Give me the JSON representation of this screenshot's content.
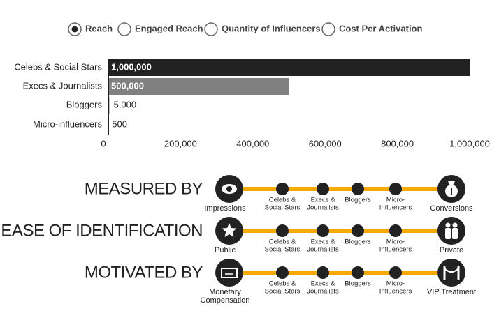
{
  "radio_buttons": [
    {
      "label": "Reach",
      "selected": true
    },
    {
      "label": "Engaged Reach",
      "selected": false
    },
    {
      "label": "Quantity of Influencers",
      "selected": false
    },
    {
      "label": "Cost Per Activation",
      "selected": false
    }
  ],
  "chart_data": {
    "type": "bar",
    "orientation": "horizontal",
    "categories": [
      "Celebs & Social Stars",
      "Execs & Journalists",
      "Bloggers",
      "Micro-influencers"
    ],
    "values": [
      1000000,
      500000,
      5000,
      500
    ],
    "value_labels": [
      "1,000,000",
      "500,000",
      "5,000",
      "500"
    ],
    "colors": [
      "#222222",
      "#808080",
      "#bbbbbb",
      "#dddddd"
    ],
    "xlim": [
      0,
      1000000
    ],
    "xticks": [
      0,
      {
        "value": 200000,
        "label": "200,000"
      },
      {
        "value": 400000,
        "label": "400,000"
      },
      {
        "value": 600000,
        "label": "600,000"
      },
      {
        "value": 800000,
        "label": "800,000"
      },
      {
        "value": 1000000,
        "label": "1,000,000"
      }
    ]
  },
  "diagram": {
    "rows": [
      {
        "title": "MEASURED BY",
        "left_label": [
          "Impressions"
        ],
        "right_label": [
          "Conversions"
        ],
        "stages": [
          [
            "Celebs &",
            "Social Stars"
          ],
          [
            "Execs &",
            "Journalists"
          ],
          [
            "Bloggers"
          ],
          [
            "Micro-",
            "Influencers"
          ]
        ]
      },
      {
        "title": "EASE OF IDENTIFICATION",
        "left_label": [
          "Public"
        ],
        "right_label": [
          "Private"
        ],
        "stages": [
          [
            "Celebs &",
            "Social Stars"
          ],
          [
            "Execs &",
            "Journalists"
          ],
          [
            "Bloggers"
          ],
          [
            "Micro-",
            "Influencers"
          ]
        ]
      },
      {
        "title": "MOTIVATED BY",
        "left_label": [
          "Monetary",
          "Compensation"
        ],
        "right_label": [
          "VIP Treatment"
        ],
        "stages": [
          [
            "Celebs &",
            "Social Stars"
          ],
          [
            "Execs &",
            "Journalists"
          ],
          [
            "Bloggers"
          ],
          [
            "Micro-",
            "Influencers"
          ]
        ]
      }
    ]
  }
}
